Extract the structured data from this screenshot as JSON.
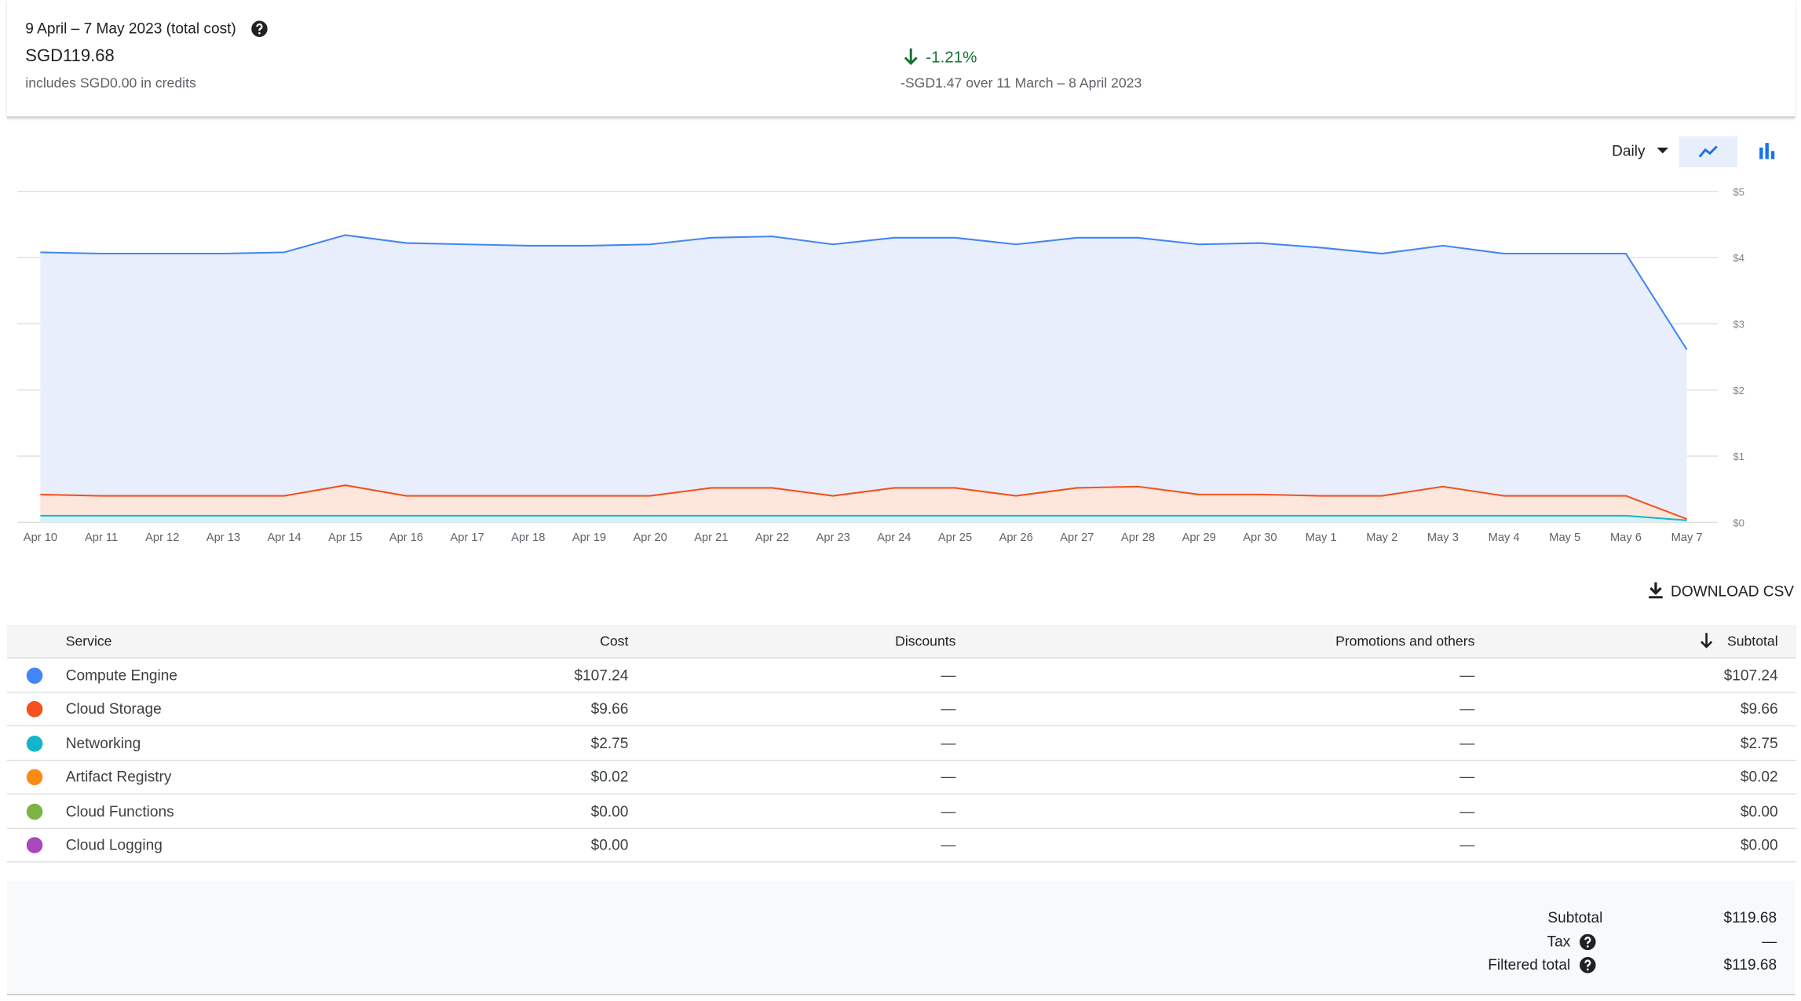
{
  "summary": {
    "title": "9 April – 7 May 2023 (total cost)",
    "total": "SGD119.68",
    "credits": "includes SGD0.00 in credits",
    "change": "-1.21%",
    "comparison": "-SGD1.47 over 11 March – 8 April 2023"
  },
  "controls": {
    "granularity": "Daily",
    "download": "DOWNLOAD CSV"
  },
  "chart_data": {
    "type": "area",
    "stacked": true,
    "categories": [
      "Apr 10",
      "Apr 11",
      "Apr 12",
      "Apr 13",
      "Apr 14",
      "Apr 15",
      "Apr 16",
      "Apr 17",
      "Apr 18",
      "Apr 19",
      "Apr 20",
      "Apr 21",
      "Apr 22",
      "Apr 23",
      "Apr 24",
      "Apr 25",
      "Apr 26",
      "Apr 27",
      "Apr 28",
      "Apr 29",
      "Apr 30",
      "May 1",
      "May 2",
      "May 3",
      "May 4",
      "May 5",
      "May 6",
      "May 7"
    ],
    "series": [
      {
        "name": "Networking",
        "color": "#12b5cb",
        "fill": "#d5f2f6",
        "values": [
          0.1,
          0.1,
          0.1,
          0.1,
          0.1,
          0.1,
          0.1,
          0.1,
          0.1,
          0.1,
          0.1,
          0.1,
          0.1,
          0.1,
          0.1,
          0.1,
          0.1,
          0.1,
          0.1,
          0.1,
          0.1,
          0.1,
          0.1,
          0.1,
          0.1,
          0.1,
          0.1,
          0.03
        ]
      },
      {
        "name": "Cloud Storage",
        "color": "#f4511e",
        "fill": "#fde6dc",
        "values": [
          0.32,
          0.3,
          0.3,
          0.3,
          0.3,
          0.46,
          0.3,
          0.3,
          0.3,
          0.3,
          0.3,
          0.42,
          0.42,
          0.3,
          0.42,
          0.42,
          0.3,
          0.42,
          0.44,
          0.32,
          0.32,
          0.3,
          0.3,
          0.44,
          0.3,
          0.3,
          0.3,
          0.02
        ]
      },
      {
        "name": "Compute Engine",
        "color": "#4285f4",
        "fill": "#e8eefb",
        "values": [
          3.66,
          3.66,
          3.66,
          3.66,
          3.68,
          3.78,
          3.82,
          3.8,
          3.78,
          3.78,
          3.8,
          3.78,
          3.8,
          3.8,
          3.78,
          3.78,
          3.8,
          3.78,
          3.76,
          3.78,
          3.8,
          3.75,
          3.66,
          3.64,
          3.66,
          3.66,
          3.66,
          2.56
        ]
      }
    ],
    "ylim": [
      0,
      5
    ],
    "yticks": [
      {
        "value": 0,
        "label": "$0"
      },
      {
        "value": 1,
        "label": "$1"
      },
      {
        "value": 2,
        "label": "$2"
      },
      {
        "value": 3,
        "label": "$3"
      },
      {
        "value": 4,
        "label": "$4"
      },
      {
        "value": 5,
        "label": "$5"
      }
    ],
    "grid": true
  },
  "table": {
    "headers": [
      "Service",
      "Cost",
      "Discounts",
      "Promotions and others",
      "Subtotal"
    ],
    "rows": [
      {
        "color": "#4285f4",
        "service": "Compute Engine",
        "cost": "$107.24",
        "discounts": "—",
        "promotions": "—",
        "subtotal": "$107.24"
      },
      {
        "color": "#f4511e",
        "service": "Cloud Storage",
        "cost": "$9.66",
        "discounts": "—",
        "promotions": "—",
        "subtotal": "$9.66"
      },
      {
        "color": "#12b5cb",
        "service": "Networking",
        "cost": "$2.75",
        "discounts": "—",
        "promotions": "—",
        "subtotal": "$2.75"
      },
      {
        "color": "#fa8c16",
        "service": "Artifact Registry",
        "cost": "$0.02",
        "discounts": "—",
        "promotions": "—",
        "subtotal": "$0.02"
      },
      {
        "color": "#7cb342",
        "service": "Cloud Functions",
        "cost": "$0.00",
        "discounts": "—",
        "promotions": "—",
        "subtotal": "$0.00"
      },
      {
        "color": "#ab47bc",
        "service": "Cloud Logging",
        "cost": "$0.00",
        "discounts": "—",
        "promotions": "—",
        "subtotal": "$0.00"
      }
    ]
  },
  "totals": [
    {
      "label": "Subtotal",
      "value": "$119.68"
    },
    {
      "label": "Tax",
      "value": "—"
    },
    {
      "label": "Filtered total",
      "value": "$119.68"
    }
  ]
}
